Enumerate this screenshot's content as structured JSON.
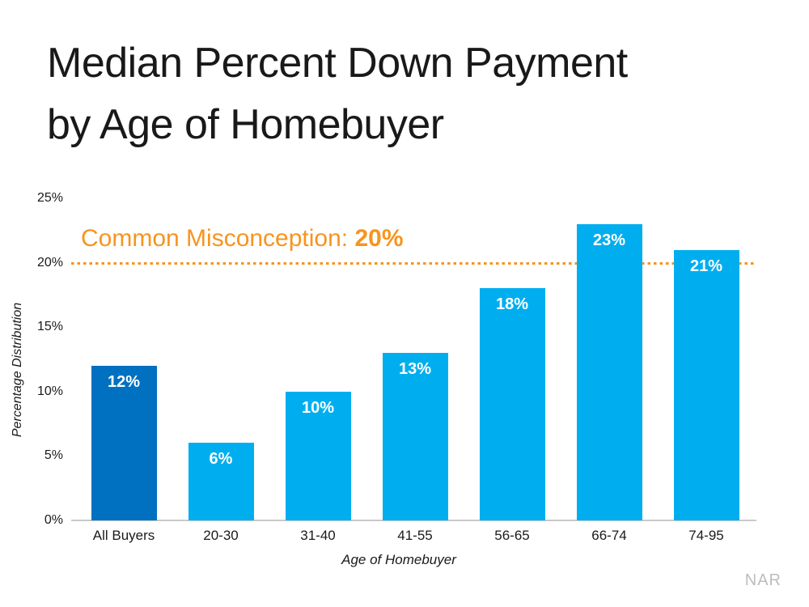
{
  "page": {
    "title_line1": "Median Percent Down Payment",
    "title_line2": "by Age of Homebuyer",
    "source": "NAR"
  },
  "annotation": {
    "prefix": "Common Misconception: ",
    "value": "20%",
    "color": "#F7941E"
  },
  "chart_data": {
    "type": "bar",
    "title": "Median Percent Down Payment by Age of Homebuyer",
    "xlabel": "Age of Homebuyer",
    "ylabel": "Percentage Distribution",
    "categories": [
      "All Buyers",
      "20-30",
      "31-40",
      "41-55",
      "56-65",
      "66-74",
      "74-95"
    ],
    "values": [
      12,
      6,
      10,
      13,
      18,
      23,
      21
    ],
    "bar_labels": [
      "12%",
      "6%",
      "10%",
      "13%",
      "18%",
      "23%",
      "21%"
    ],
    "ylim": [
      0,
      25
    ],
    "ytick_values": [
      0,
      5,
      10,
      15,
      20,
      25
    ],
    "ytick_labels": [
      "0%",
      "5%",
      "10%",
      "15%",
      "20%",
      "25%"
    ],
    "grid": false,
    "legend_position": "none",
    "reference_line": {
      "value": 20,
      "style": "dotted",
      "color": "#F7941E",
      "label": "Common Misconception: 20%"
    },
    "bar_colors": {
      "first_bar": "#0070C0",
      "default": "#00AEEF"
    },
    "axis_line_color": "#c9c9c9"
  }
}
